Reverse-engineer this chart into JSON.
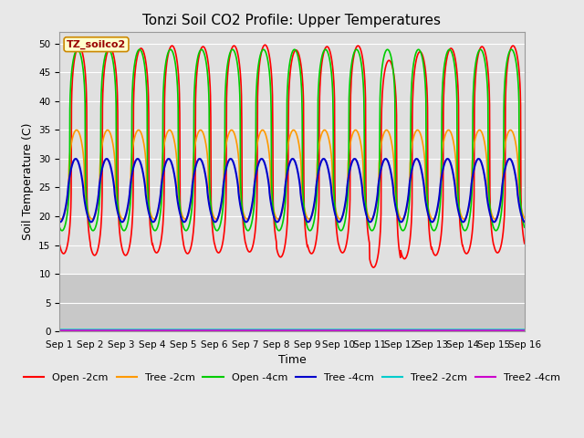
{
  "title": "Tonzi Soil CO2 Profile: Upper Temperatures",
  "xlabel": "Time",
  "ylabel": "Soil Temperature (C)",
  "ylim": [
    0,
    52
  ],
  "yticks": [
    0,
    5,
    10,
    15,
    20,
    25,
    30,
    35,
    40,
    45,
    50
  ],
  "xtick_labels": [
    "Sep 1",
    "Sep 2",
    "Sep 3",
    "Sep 4",
    "Sep 5",
    "Sep 6",
    "Sep 7",
    "Sep 8",
    "Sep 9",
    "Sep 10",
    "Sep 11",
    "Sep 12",
    "Sep 13",
    "Sep 14",
    "Sep 15",
    "Sep 16"
  ],
  "label_box_text": "TZ_soilco2",
  "label_box_color": "#ffffcc",
  "label_box_edge": "#cc8800",
  "series": {
    "Open -2cm": {
      "color": "#ff0000",
      "lw": 1.2
    },
    "Tree -2cm": {
      "color": "#ff9900",
      "lw": 1.2
    },
    "Open -4cm": {
      "color": "#00cc00",
      "lw": 1.2
    },
    "Tree -4cm": {
      "color": "#0000cc",
      "lw": 1.5
    },
    "Tree2 -2cm": {
      "color": "#00cccc",
      "lw": 1.2
    },
    "Tree2 -4cm": {
      "color": "#cc00cc",
      "lw": 1.2
    }
  },
  "n_days": 15,
  "ppd": 96,
  "background_fig": "#e8e8e8",
  "background_upper": "#e0e0e0",
  "background_lower": "#c8c8c8",
  "grid_color": "#ffffff",
  "title_fontsize": 11,
  "tick_fontsize": 7.5,
  "label_fontsize": 9,
  "legend_fontsize": 8
}
